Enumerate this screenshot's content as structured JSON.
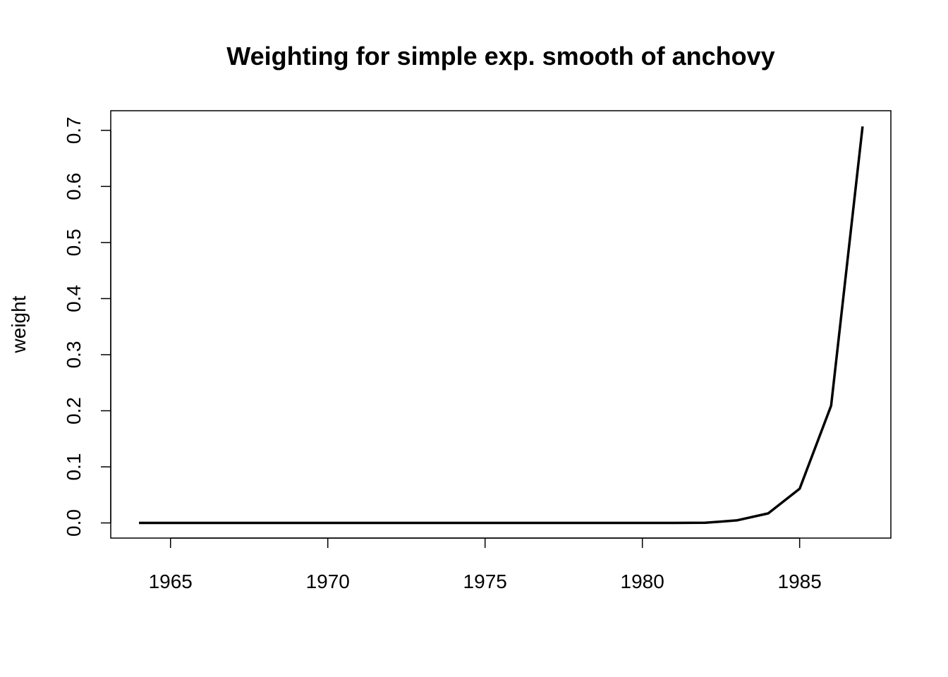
{
  "chart_data": {
    "type": "line",
    "title": "Weighting for simple exp. smooth of anchovy",
    "xlabel": "",
    "ylabel": "weight",
    "xlim": [
      1963.1,
      1987.9
    ],
    "ylim": [
      -0.027,
      0.735
    ],
    "xticks": [
      1965,
      1970,
      1975,
      1980,
      1985
    ],
    "xtick_labels": [
      "1965",
      "1970",
      "1975",
      "1980",
      "1985"
    ],
    "yticks": [
      0.0,
      0.1,
      0.2,
      0.3,
      0.4,
      0.5,
      0.6,
      0.7
    ],
    "ytick_labels": [
      "0.0",
      "0.1",
      "0.2",
      "0.3",
      "0.4",
      "0.5",
      "0.6",
      "0.7"
    ],
    "grid": false,
    "series": [
      {
        "x": [
          1964,
          1965,
          1966,
          1967,
          1968,
          1969,
          1970,
          1971,
          1972,
          1973,
          1974,
          1975,
          1976,
          1977,
          1978,
          1979,
          1980,
          1981,
          1982,
          1983,
          1984,
          1985,
          1986,
          1987
        ],
        "values": [
          0,
          0,
          0,
          0,
          0,
          0,
          0,
          0,
          0,
          0,
          0,
          0,
          0,
          0,
          0,
          0,
          0,
          0,
          0.0003,
          0.0045,
          0.017,
          0.061,
          0.209,
          0.707
        ]
      }
    ]
  }
}
